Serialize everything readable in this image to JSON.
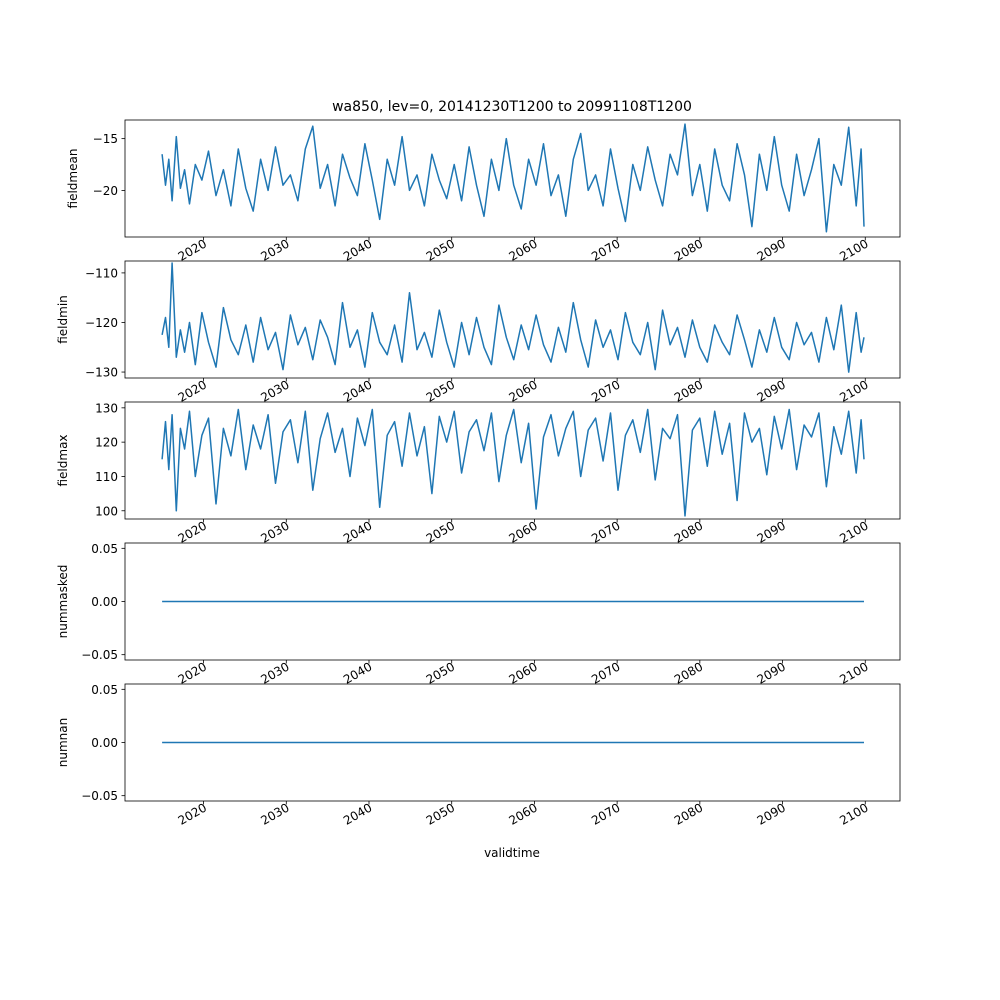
{
  "figure": {
    "title": "wa850, lev=0, 20141230T1200 to 20991108T1200",
    "xlabel": "validtime",
    "line_color": "#1f77b4"
  },
  "chart_data": [
    {
      "type": "line",
      "ylabel": "fieldmean",
      "xlim": [
        2010.5,
        2104.2
      ],
      "ylim": [
        -24.5,
        -13.2
      ],
      "xticks": [
        "2020",
        "2030",
        "2040",
        "2050",
        "2060",
        "2070",
        "2080",
        "2090",
        "2100"
      ],
      "yticks": [
        -15,
        -20
      ],
      "x": [
        2014.99,
        2015.4,
        2015.8,
        2016.2,
        2016.7,
        2017.2,
        2017.7,
        2018.3,
        2019.0,
        2019.8,
        2020.6,
        2021.5,
        2022.4,
        2023.3,
        2024.2,
        2025.1,
        2026.0,
        2026.9,
        2027.8,
        2028.7,
        2029.6,
        2030.5,
        2031.4,
        2032.3,
        2033.2,
        2034.1,
        2035.0,
        2035.9,
        2036.8,
        2037.7,
        2038.6,
        2039.5,
        2040.4,
        2041.3,
        2042.2,
        2043.1,
        2044.0,
        2044.9,
        2045.8,
        2046.7,
        2047.6,
        2048.5,
        2049.4,
        2050.3,
        2051.2,
        2052.1,
        2053.0,
        2053.9,
        2054.8,
        2055.7,
        2056.6,
        2057.5,
        2058.4,
        2059.3,
        2060.2,
        2061.1,
        2062.0,
        2062.9,
        2063.8,
        2064.7,
        2065.6,
        2066.5,
        2067.4,
        2068.3,
        2069.2,
        2070.1,
        2071.0,
        2071.9,
        2072.8,
        2073.7,
        2074.6,
        2075.5,
        2076.4,
        2077.3,
        2078.2,
        2079.1,
        2080.0,
        2080.9,
        2081.8,
        2082.7,
        2083.6,
        2084.5,
        2085.4,
        2086.3,
        2087.2,
        2088.1,
        2089.0,
        2089.9,
        2090.8,
        2091.7,
        2092.6,
        2093.5,
        2094.4,
        2095.3,
        2096.2,
        2097.1,
        2098.0,
        2098.9,
        2099.5,
        2099.85
      ],
      "series": [
        {
          "values": [
            -16.5,
            -19.5,
            -17.0,
            -21.0,
            -14.8,
            -19.8,
            -18.0,
            -21.3,
            -17.5,
            -19.0,
            -16.2,
            -20.5,
            -18.0,
            -21.5,
            -16.0,
            -19.8,
            -22.0,
            -17.0,
            -20.0,
            -15.8,
            -19.5,
            -18.5,
            -21.0,
            -16.0,
            -13.8,
            -19.8,
            -17.5,
            -21.5,
            -16.5,
            -18.8,
            -20.5,
            -15.5,
            -19.0,
            -22.8,
            -17.0,
            -19.5,
            -14.8,
            -20.0,
            -18.5,
            -21.5,
            -16.5,
            -19.0,
            -20.8,
            -17.5,
            -21.0,
            -15.8,
            -19.5,
            -22.5,
            -17.0,
            -20.0,
            -15.0,
            -19.5,
            -21.8,
            -17.0,
            -19.5,
            -15.5,
            -20.5,
            -18.5,
            -22.5,
            -17.0,
            -14.5,
            -20.0,
            -18.5,
            -21.5,
            -16.0,
            -19.8,
            -23.0,
            -17.5,
            -20.0,
            -15.8,
            -19.0,
            -21.5,
            -16.5,
            -18.5,
            -13.6,
            -20.5,
            -17.5,
            -22.0,
            -16.0,
            -19.5,
            -21.0,
            -15.5,
            -18.5,
            -23.5,
            -16.5,
            -20.0,
            -14.8,
            -19.5,
            -22.0,
            -16.5,
            -20.5,
            -18.0,
            -15.0,
            -24.0,
            -17.5,
            -19.5,
            -13.9,
            -21.5,
            -16.0,
            -23.5
          ]
        }
      ]
    },
    {
      "type": "line",
      "ylabel": "fieldmin",
      "xlim": [
        2010.5,
        2104.2
      ],
      "ylim": [
        -131.2,
        -107.6
      ],
      "xticks": [
        "2020",
        "2030",
        "2040",
        "2050",
        "2060",
        "2070",
        "2080",
        "2090",
        "2100"
      ],
      "yticks": [
        -110,
        -120,
        -130
      ],
      "x": [
        2014.99,
        2015.4,
        2015.8,
        2016.2,
        2016.7,
        2017.2,
        2017.7,
        2018.3,
        2019.0,
        2019.8,
        2020.6,
        2021.5,
        2022.4,
        2023.3,
        2024.2,
        2025.1,
        2026.0,
        2026.9,
        2027.8,
        2028.7,
        2029.6,
        2030.5,
        2031.4,
        2032.3,
        2033.2,
        2034.1,
        2035.0,
        2035.9,
        2036.8,
        2037.7,
        2038.6,
        2039.5,
        2040.4,
        2041.3,
        2042.2,
        2043.1,
        2044.0,
        2044.9,
        2045.8,
        2046.7,
        2047.6,
        2048.5,
        2049.4,
        2050.3,
        2051.2,
        2052.1,
        2053.0,
        2053.9,
        2054.8,
        2055.7,
        2056.6,
        2057.5,
        2058.4,
        2059.3,
        2060.2,
        2061.1,
        2062.0,
        2062.9,
        2063.8,
        2064.7,
        2065.6,
        2066.5,
        2067.4,
        2068.3,
        2069.2,
        2070.1,
        2071.0,
        2071.9,
        2072.8,
        2073.7,
        2074.6,
        2075.5,
        2076.4,
        2077.3,
        2078.2,
        2079.1,
        2080.0,
        2080.9,
        2081.8,
        2082.7,
        2083.6,
        2084.5,
        2085.4,
        2086.3,
        2087.2,
        2088.1,
        2089.0,
        2089.9,
        2090.8,
        2091.7,
        2092.6,
        2093.5,
        2094.4,
        2095.3,
        2096.2,
        2097.1,
        2098.0,
        2098.9,
        2099.5,
        2099.85
      ],
      "series": [
        {
          "values": [
            -122.5,
            -119.0,
            -125.0,
            -108.0,
            -127.0,
            -121.5,
            -126.0,
            -120.0,
            -128.5,
            -118.0,
            -124.0,
            -129.0,
            -117.0,
            -123.5,
            -126.5,
            -120.5,
            -128.0,
            -119.0,
            -125.5,
            -122.0,
            -129.5,
            -118.5,
            -124.5,
            -121.0,
            -127.5,
            -119.5,
            -123.0,
            -128.5,
            -116.0,
            -125.0,
            -121.5,
            -129.0,
            -118.0,
            -124.0,
            -126.5,
            -120.5,
            -128.0,
            -114.0,
            -125.5,
            -122.0,
            -127.0,
            -117.5,
            -124.0,
            -129.0,
            -120.0,
            -126.5,
            -119.0,
            -125.0,
            -128.5,
            -116.5,
            -123.0,
            -127.5,
            -120.5,
            -125.5,
            -118.5,
            -124.5,
            -128.0,
            -121.0,
            -126.0,
            -116.0,
            -123.5,
            -129.0,
            -119.5,
            -125.0,
            -121.5,
            -127.5,
            -118.0,
            -124.0,
            -126.5,
            -120.0,
            -129.5,
            -117.5,
            -124.5,
            -121.0,
            -127.0,
            -119.5,
            -125.0,
            -128.0,
            -120.5,
            -124.0,
            -126.5,
            -118.5,
            -123.5,
            -129.0,
            -121.5,
            -126.0,
            -119.0,
            -125.0,
            -127.5,
            -120.0,
            -124.5,
            -122.0,
            -128.0,
            -119.0,
            -125.5,
            -116.5,
            -130.0,
            -118.0,
            -126.0,
            -123.0
          ]
        }
      ]
    },
    {
      "type": "line",
      "ylabel": "fieldmax",
      "xlim": [
        2010.5,
        2104.2
      ],
      "ylim": [
        97.6,
        131.7
      ],
      "xticks": [
        "2020",
        "2030",
        "2040",
        "2050",
        "2060",
        "2070",
        "2080",
        "2090",
        "2100"
      ],
      "yticks": [
        130,
        120,
        110,
        100
      ],
      "x": [
        2014.99,
        2015.4,
        2015.8,
        2016.2,
        2016.7,
        2017.2,
        2017.7,
        2018.3,
        2019.0,
        2019.8,
        2020.6,
        2021.5,
        2022.4,
        2023.3,
        2024.2,
        2025.1,
        2026.0,
        2026.9,
        2027.8,
        2028.7,
        2029.6,
        2030.5,
        2031.4,
        2032.3,
        2033.2,
        2034.1,
        2035.0,
        2035.9,
        2036.8,
        2037.7,
        2038.6,
        2039.5,
        2040.4,
        2041.3,
        2042.2,
        2043.1,
        2044.0,
        2044.9,
        2045.8,
        2046.7,
        2047.6,
        2048.5,
        2049.4,
        2050.3,
        2051.2,
        2052.1,
        2053.0,
        2053.9,
        2054.8,
        2055.7,
        2056.6,
        2057.5,
        2058.4,
        2059.3,
        2060.2,
        2061.1,
        2062.0,
        2062.9,
        2063.8,
        2064.7,
        2065.6,
        2066.5,
        2067.4,
        2068.3,
        2069.2,
        2070.1,
        2071.0,
        2071.9,
        2072.8,
        2073.7,
        2074.6,
        2075.5,
        2076.4,
        2077.3,
        2078.2,
        2079.1,
        2080.0,
        2080.9,
        2081.8,
        2082.7,
        2083.6,
        2084.5,
        2085.4,
        2086.3,
        2087.2,
        2088.1,
        2089.0,
        2089.9,
        2090.8,
        2091.7,
        2092.6,
        2093.5,
        2094.4,
        2095.3,
        2096.2,
        2097.1,
        2098.0,
        2098.9,
        2099.5,
        2099.85
      ],
      "series": [
        {
          "values": [
            115.0,
            126.0,
            112.0,
            128.0,
            100.0,
            124.0,
            118.0,
            129.0,
            110.0,
            122.0,
            127.0,
            102.0,
            124.0,
            116.0,
            129.5,
            112.0,
            125.0,
            118.0,
            128.0,
            108.0,
            123.0,
            126.5,
            114.0,
            129.0,
            106.0,
            121.0,
            128.5,
            117.0,
            124.0,
            110.0,
            127.0,
            119.0,
            129.5,
            101.0,
            122.0,
            126.0,
            113.0,
            128.5,
            116.0,
            124.5,
            105.0,
            127.5,
            120.0,
            129.0,
            111.0,
            123.0,
            126.5,
            117.5,
            128.5,
            108.5,
            122.0,
            129.5,
            114.0,
            125.5,
            100.5,
            121.5,
            128.0,
            116.0,
            124.0,
            129.0,
            110.0,
            123.5,
            127.0,
            114.5,
            128.5,
            106.0,
            122.0,
            126.5,
            117.0,
            129.5,
            109.0,
            124.0,
            121.0,
            128.0,
            98.5,
            123.5,
            127.0,
            113.0,
            129.0,
            116.5,
            125.5,
            103.0,
            128.5,
            120.0,
            124.0,
            110.5,
            127.5,
            118.0,
            129.5,
            112.0,
            125.0,
            121.5,
            128.5,
            107.0,
            124.5,
            116.5,
            129.0,
            111.0,
            126.5,
            115.0
          ]
        }
      ]
    },
    {
      "type": "line",
      "ylabel": "nummasked",
      "xlim": [
        2010.5,
        2104.2
      ],
      "ylim": [
        -0.055,
        0.055
      ],
      "xticks": [
        "2020",
        "2030",
        "2040",
        "2050",
        "2060",
        "2070",
        "2080",
        "2090",
        "2100"
      ],
      "yticks": [
        "0.05",
        "0.00",
        "-0.05"
      ],
      "x": [
        2014.99,
        2099.85
      ],
      "series": [
        {
          "values": [
            0.0,
            0.0
          ]
        }
      ]
    },
    {
      "type": "line",
      "ylabel": "numnan",
      "xlim": [
        2010.5,
        2104.2
      ],
      "ylim": [
        -0.055,
        0.055
      ],
      "xticks": [
        "2020",
        "2030",
        "2040",
        "2050",
        "2060",
        "2070",
        "2080",
        "2090",
        "2100"
      ],
      "yticks": [
        "0.05",
        "0.00",
        "-0.05"
      ],
      "x": [
        2014.99,
        2099.85
      ],
      "series": [
        {
          "values": [
            0.0,
            0.0
          ]
        }
      ]
    }
  ]
}
